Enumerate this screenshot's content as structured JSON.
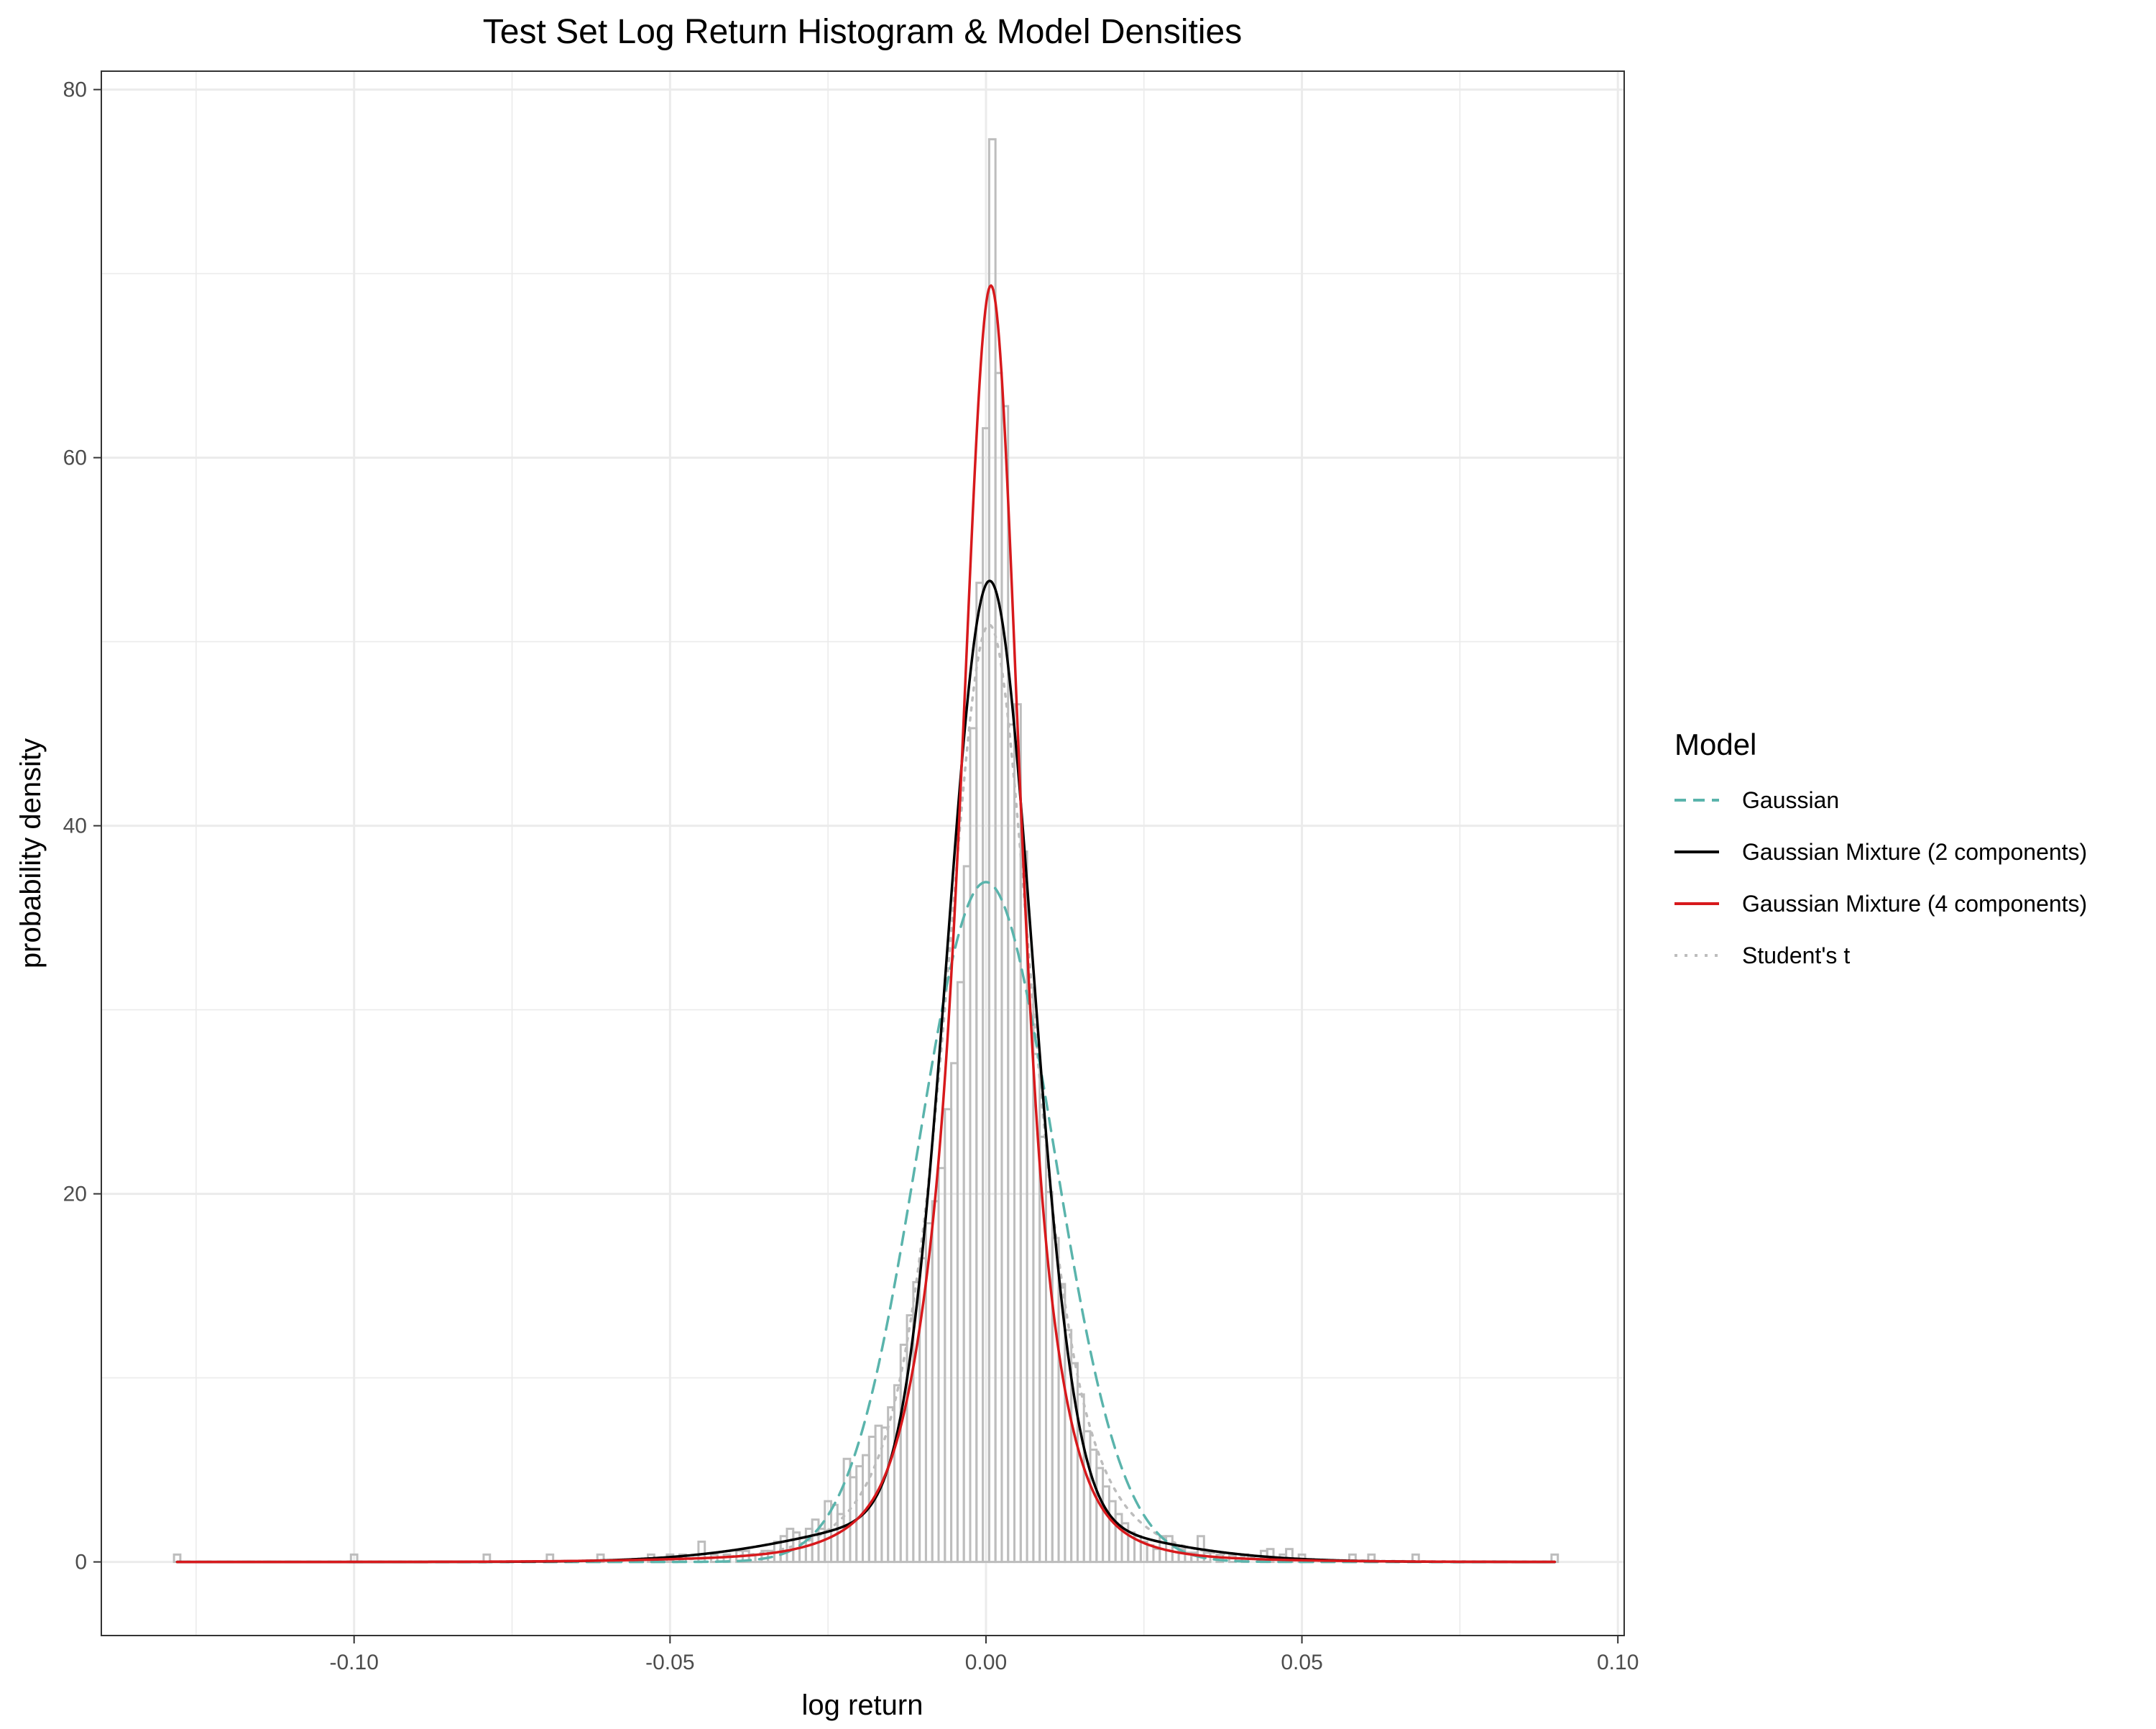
{
  "chart_data": {
    "type": "histogram",
    "title": "Test Set Log Return Histogram & Model Densities",
    "xlabel": "log return",
    "ylabel": "probability density",
    "xlim": [
      -0.14,
      0.101
    ],
    "ylim": [
      -4,
      81
    ],
    "x_ticks": [
      -0.1,
      -0.05,
      0.0,
      0.05,
      0.1
    ],
    "x_tick_labels": [
      "-0.10",
      "-0.05",
      "0.00",
      "0.05",
      "0.10"
    ],
    "y_ticks": [
      0,
      20,
      40,
      60,
      80
    ],
    "y_tick_labels": [
      "0",
      "20",
      "40",
      "60",
      "80"
    ],
    "grid": true,
    "legend": {
      "title": "Model",
      "position": "right",
      "entries": [
        {
          "label": "Gaussian",
          "color": "#5ab4ac",
          "dash": "dashed"
        },
        {
          "label": "Gaussian Mixture (2 components)",
          "color": "#000000",
          "dash": "solid"
        },
        {
          "label": "Gaussian Mixture (4 components)",
          "color": "#d7191c",
          "dash": "solid"
        },
        {
          "label": "Student's t",
          "color": "#bdbdbd",
          "dash": "dotted"
        }
      ]
    },
    "histogram": {
      "bin_width": 0.001,
      "bins": [
        [
          -0.128,
          0.4
        ],
        [
          -0.1,
          0.4
        ],
        [
          -0.079,
          0.4
        ],
        [
          -0.069,
          0.4
        ],
        [
          -0.061,
          0.4
        ],
        [
          -0.053,
          0.4
        ],
        [
          -0.05,
          0.4
        ],
        [
          -0.048,
          0.4
        ],
        [
          -0.045,
          1.1
        ],
        [
          -0.043,
          0.4
        ],
        [
          -0.041,
          0.4
        ],
        [
          -0.039,
          0.6
        ],
        [
          -0.038,
          0.6
        ],
        [
          -0.037,
          0.4
        ],
        [
          -0.036,
          0.4
        ],
        [
          -0.035,
          0.6
        ],
        [
          -0.034,
          0.6
        ],
        [
          -0.033,
          1.1
        ],
        [
          -0.032,
          1.4
        ],
        [
          -0.031,
          1.8
        ],
        [
          -0.03,
          1.6
        ],
        [
          -0.029,
          1.3
        ],
        [
          -0.028,
          1.8
        ],
        [
          -0.027,
          2.3
        ],
        [
          -0.026,
          1.8
        ],
        [
          -0.025,
          3.3
        ],
        [
          -0.024,
          3.1
        ],
        [
          -0.023,
          2.6
        ],
        [
          -0.022,
          5.6
        ],
        [
          -0.021,
          4.6
        ],
        [
          -0.02,
          5.2
        ],
        [
          -0.019,
          5.8
        ],
        [
          -0.018,
          6.8
        ],
        [
          -0.017,
          7.4
        ],
        [
          -0.016,
          7.3
        ],
        [
          -0.015,
          8.4
        ],
        [
          -0.014,
          9.6
        ],
        [
          -0.013,
          11.8
        ],
        [
          -0.012,
          13.4
        ],
        [
          -0.011,
          15.2
        ],
        [
          -0.01,
          16.5
        ],
        [
          -0.009,
          18.4
        ],
        [
          -0.008,
          19.6
        ],
        [
          -0.007,
          21.4
        ],
        [
          -0.006,
          24.6
        ],
        [
          -0.005,
          27.1
        ],
        [
          -0.004,
          31.5
        ],
        [
          -0.003,
          37.8
        ],
        [
          -0.002,
          45.3
        ],
        [
          -0.001,
          53.2
        ],
        [
          0.0,
          61.6
        ],
        [
          0.001,
          77.3
        ],
        [
          0.002,
          64.6
        ],
        [
          0.003,
          62.8
        ],
        [
          0.004,
          45.5
        ],
        [
          0.005,
          46.6
        ],
        [
          0.006,
          38.6
        ],
        [
          0.007,
          31.2
        ],
        [
          0.008,
          27.6
        ],
        [
          0.009,
          23.1
        ],
        [
          0.01,
          20.1
        ],
        [
          0.011,
          17.6
        ],
        [
          0.012,
          15.1
        ],
        [
          0.013,
          12.6
        ],
        [
          0.014,
          10.8
        ],
        [
          0.015,
          9.1
        ],
        [
          0.016,
          7.1
        ],
        [
          0.017,
          6.1
        ],
        [
          0.018,
          5.1
        ],
        [
          0.019,
          4.1
        ],
        [
          0.02,
          3.3
        ],
        [
          0.021,
          2.6
        ],
        [
          0.022,
          2.1
        ],
        [
          0.023,
          1.6
        ],
        [
          0.024,
          1.4
        ],
        [
          0.025,
          1.1
        ],
        [
          0.026,
          0.9
        ],
        [
          0.027,
          0.7
        ],
        [
          0.028,
          1.4
        ],
        [
          0.029,
          1.4
        ],
        [
          0.03,
          0.9
        ],
        [
          0.031,
          0.7
        ],
        [
          0.032,
          0.5
        ],
        [
          0.033,
          0.5
        ],
        [
          0.034,
          1.4
        ],
        [
          0.035,
          0.5
        ],
        [
          0.037,
          0.4
        ],
        [
          0.039,
          0.4
        ],
        [
          0.041,
          0.4
        ],
        [
          0.044,
          0.6
        ],
        [
          0.045,
          0.7
        ],
        [
          0.047,
          0.4
        ],
        [
          0.048,
          0.7
        ],
        [
          0.05,
          0.4
        ],
        [
          0.058,
          0.4
        ],
        [
          0.061,
          0.4
        ],
        [
          0.068,
          0.4
        ],
        [
          0.09,
          0.4
        ]
      ]
    },
    "series": [
      {
        "name": "Gaussian",
        "mean": 0.0,
        "sd": 0.0108
      },
      {
        "name": "Gaussian Mixture (2 components)",
        "weights": [
          0.85,
          0.15
        ],
        "means": [
          0.0006,
          -0.0025
        ],
        "sds": [
          0.0067,
          0.022
        ]
      },
      {
        "name": "Gaussian Mixture (4 components)",
        "weights": [
          0.31,
          0.48,
          0.17,
          0.04
        ],
        "means": [
          0.0009,
          0.0003,
          -0.0007,
          -0.004
        ],
        "sds": [
          0.0035,
          0.0068,
          0.0125,
          0.028
        ]
      },
      {
        "name": "Student's t",
        "location": 0.0005,
        "scale": 0.0073,
        "df": 3.5
      }
    ]
  }
}
